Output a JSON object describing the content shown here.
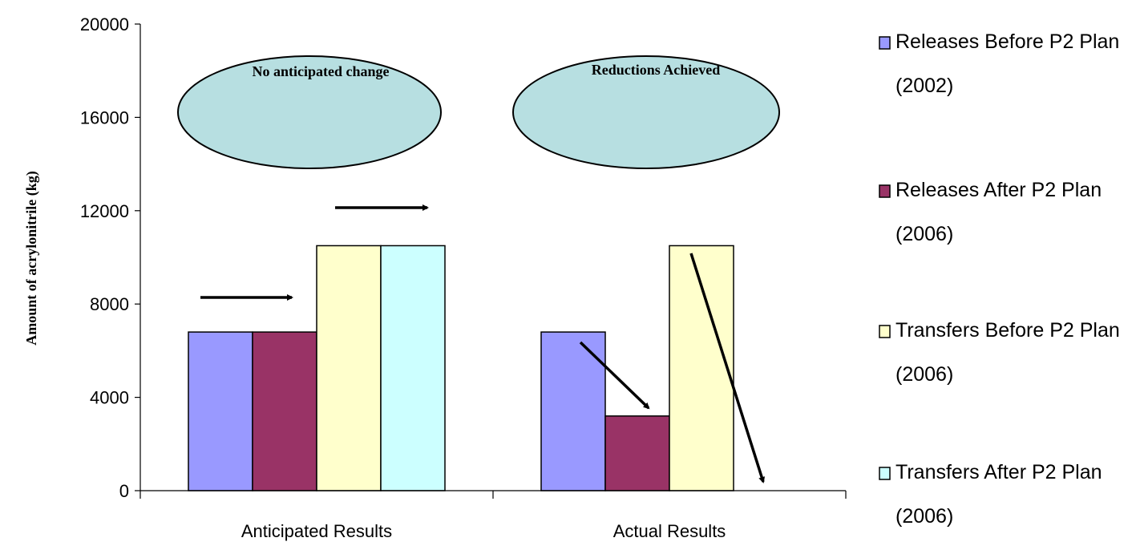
{
  "chart_data": {
    "type": "bar",
    "categories": [
      "Anticipated Results",
      "Actual Results"
    ],
    "series": [
      {
        "name": "Releases Before P2 Plan (2002)",
        "values": [
          6800,
          6800
        ],
        "color": "#9999ff"
      },
      {
        "name": "Releases After P2 Plan (2006)",
        "values": [
          6800,
          3200
        ],
        "color": "#993366"
      },
      {
        "name": "Transfers Before P2 Plan (2006)",
        "values": [
          10500,
          10500
        ],
        "color": "#ffffcc"
      },
      {
        "name": "Transfers After P2 Plan (2006)",
        "values": [
          10500,
          null
        ],
        "color": "#ccffff"
      }
    ],
    "ylabel": "Amount of acrylonitrile (kg)",
    "ylim": [
      0,
      20000
    ],
    "yticks": [
      0,
      4000,
      8000,
      12000,
      16000,
      20000
    ],
    "ytick_labels": [
      "0",
      "4000",
      "8000",
      "12000",
      "16000",
      "20000"
    ],
    "legend_position": "right",
    "legend_lines": [
      [
        "Releases Before P2 Plan",
        "(2002)"
      ],
      [
        "Releases After P2 Plan",
        "(2006)"
      ],
      [
        "Transfers Before P2 Plan",
        "(2006)"
      ],
      [
        "Transfers After P2 Plan",
        "(2006)"
      ]
    ],
    "annotations": {
      "left": "No anticipated change",
      "right": "Reductions Achieved",
      "ellipse_color": "#b7dfe1"
    }
  }
}
